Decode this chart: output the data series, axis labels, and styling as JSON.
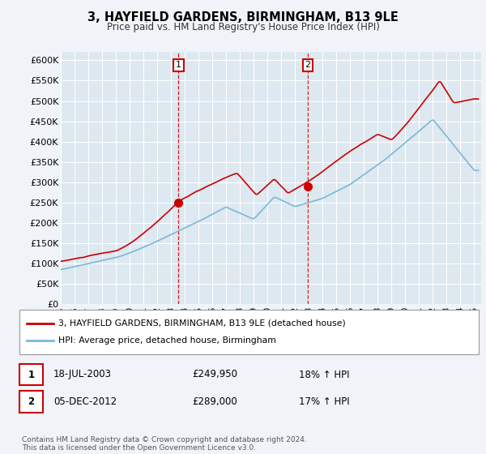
{
  "title": "3, HAYFIELD GARDENS, BIRMINGHAM, B13 9LE",
  "subtitle": "Price paid vs. HM Land Registry's House Price Index (HPI)",
  "ylabel_ticks": [
    "£0",
    "£50K",
    "£100K",
    "£150K",
    "£200K",
    "£250K",
    "£300K",
    "£350K",
    "£400K",
    "£450K",
    "£500K",
    "£550K",
    "£600K"
  ],
  "ytick_values": [
    0,
    50000,
    100000,
    150000,
    200000,
    250000,
    300000,
    350000,
    400000,
    450000,
    500000,
    550000,
    600000
  ],
  "ylim": [
    0,
    620000
  ],
  "hpi_color": "#7ab8d9",
  "price_color": "#cc0000",
  "marker1_date_x": 2003.54,
  "marker1_price": 249950,
  "marker2_date_x": 2012.92,
  "marker2_price": 289000,
  "legend_line1": "3, HAYFIELD GARDENS, BIRMINGHAM, B13 9LE (detached house)",
  "legend_line2": "HPI: Average price, detached house, Birmingham",
  "table_row1": [
    "1",
    "18-JUL-2003",
    "£249,950",
    "18% ↑ HPI"
  ],
  "table_row2": [
    "2",
    "05-DEC-2012",
    "£289,000",
    "17% ↑ HPI"
  ],
  "footer": "Contains HM Land Registry data © Crown copyright and database right 2024.\nThis data is licensed under the Open Government Licence v3.0.",
  "bg_color": "#f0f4f8",
  "plot_bg_color": "#dde8f0",
  "grid_color": "#ffffff",
  "xmin": 1995,
  "xmax": 2025.5
}
